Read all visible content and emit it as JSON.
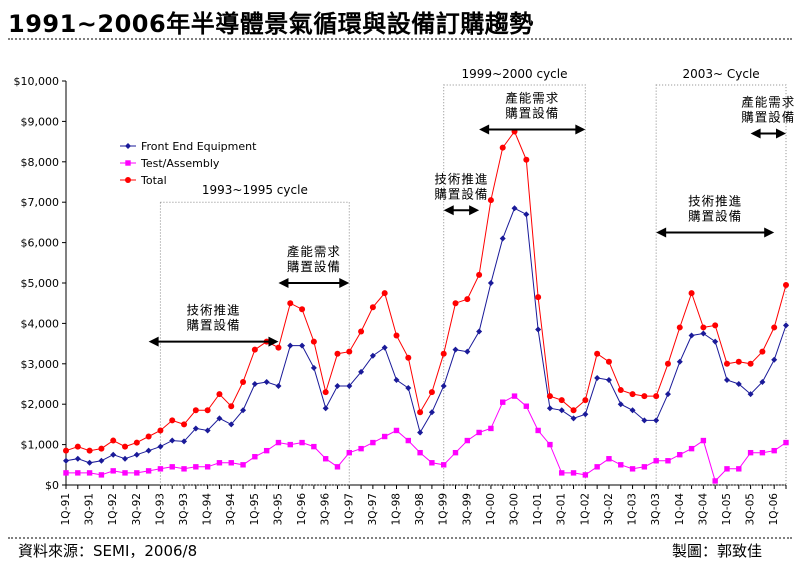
{
  "title": "1991~2006年半導體景氣循環與設備訂購趨勢",
  "footer": {
    "source": "資料來源：SEMI，2006/8",
    "author": "製圖：郭致佳"
  },
  "colors": {
    "front_end": "#1a1a99",
    "test_assembly": "#ff00ff",
    "total": "#ff0000",
    "annotation": "#000000"
  },
  "chart_data": {
    "type": "line",
    "ylim": [
      0,
      10000
    ],
    "ytick_labels": [
      "$0",
      "$1,000",
      "$2,000",
      "$3,000",
      "$4,000",
      "$5,000",
      "$6,000",
      "$7,000",
      "$8,000",
      "$9,000",
      "$10,000"
    ],
    "categories": [
      "1Q-91",
      "2Q-91",
      "3Q-91",
      "4Q-91",
      "1Q-92",
      "2Q-92",
      "3Q-92",
      "4Q-92",
      "1Q-93",
      "2Q-93",
      "3Q-93",
      "4Q-93",
      "1Q-94",
      "2Q-94",
      "3Q-94",
      "4Q-94",
      "1Q-95",
      "2Q-95",
      "3Q-95",
      "4Q-95",
      "1Q-96",
      "2Q-96",
      "3Q-96",
      "4Q-96",
      "1Q-97",
      "2Q-97",
      "3Q-97",
      "4Q-97",
      "1Q-98",
      "2Q-98",
      "3Q-98",
      "4Q-98",
      "1Q-99",
      "2Q-99",
      "3Q-99",
      "4Q-99",
      "1Q-00",
      "2Q-00",
      "3Q-00",
      "4Q-00",
      "1Q-01",
      "2Q-01",
      "3Q-01",
      "4Q-01",
      "1Q-02",
      "2Q-02",
      "3Q-02",
      "4Q-02",
      "1Q-03",
      "2Q-03",
      "3Q-03",
      "4Q-03",
      "1Q-04",
      "2Q-04",
      "3Q-04",
      "4Q-04",
      "1Q-05",
      "2Q-05",
      "3Q-05",
      "4Q-05",
      "1Q-06",
      "2Q-06"
    ],
    "series": [
      {
        "name": "Front End Equipment",
        "marker": "diamond",
        "values": [
          600,
          650,
          550,
          600,
          750,
          650,
          750,
          850,
          950,
          1100,
          1080,
          1400,
          1350,
          1650,
          1500,
          1850,
          2500,
          2550,
          2450,
          3450,
          3450,
          2900,
          1900,
          2450,
          2450,
          2800,
          3200,
          3400,
          2600,
          2400,
          1300,
          1800,
          2450,
          3350,
          3300,
          3800,
          5000,
          6100,
          6850,
          6700,
          3850,
          1900,
          1850,
          1650,
          1750,
          2650,
          2600,
          2000,
          1850,
          1600,
          1600,
          2250,
          3050,
          3700,
          3750,
          3550,
          2600,
          2500,
          2250,
          2550,
          3100,
          3950
        ]
      },
      {
        "name": "Test/Assembly",
        "marker": "square",
        "values": [
          300,
          300,
          300,
          250,
          350,
          300,
          300,
          350,
          400,
          450,
          400,
          450,
          450,
          550,
          550,
          500,
          700,
          850,
          1050,
          1000,
          1050,
          950,
          650,
          450,
          800,
          900,
          1050,
          1200,
          1350,
          1100,
          800,
          550,
          500,
          800,
          1100,
          1300,
          1400,
          2050,
          2200,
          1950,
          1350,
          1000,
          300,
          300,
          250,
          450,
          650,
          500,
          400,
          450,
          600,
          600,
          750,
          900,
          1100,
          100,
          400,
          400,
          800,
          800,
          850,
          1050
        ]
      },
      {
        "name": "Total",
        "marker": "circle",
        "values": [
          850,
          950,
          850,
          900,
          1100,
          950,
          1050,
          1200,
          1350,
          1600,
          1500,
          1850,
          1850,
          2250,
          1950,
          2550,
          3350,
          3550,
          3400,
          4500,
          4350,
          3550,
          2300,
          3250,
          3300,
          3800,
          4400,
          4750,
          3700,
          3150,
          1800,
          2300,
          3250,
          4500,
          4600,
          5200,
          7050,
          8350,
          8750,
          8050,
          4650,
          2200,
          2100,
          1850,
          2100,
          3250,
          3050,
          2350,
          2250,
          2200,
          2200,
          3000,
          3900,
          4750,
          3900,
          3950,
          3000,
          3050,
          3000,
          3300,
          3900,
          4950
        ]
      }
    ],
    "cycles": [
      {
        "label": "1993~1995 cycle",
        "start": "1Q-93",
        "end": "1Q-97"
      },
      {
        "label": "1999~2000 cycle",
        "start": "1Q-99",
        "end": "1Q-02"
      },
      {
        "label": "2003~  Cycle",
        "start": "3Q-03",
        "end": "2Q-06"
      }
    ],
    "annotations": [
      {
        "line1": "技術推進",
        "line2": "購置設備",
        "from": "4Q-92",
        "to": "3Q-95",
        "y": 3550
      },
      {
        "line1": "產能需求",
        "line2": "購置設備",
        "from": "3Q-95",
        "to": "1Q-97",
        "y": 5000
      },
      {
        "line1": "技術推進",
        "line2": "購置設備",
        "from": "1Q-99",
        "to": "4Q-99",
        "y": 6800
      },
      {
        "line1": "產能需求",
        "line2": "購置設備",
        "from": "4Q-99",
        "to": "1Q-02",
        "y": 8800
      },
      {
        "line1": "技術推進",
        "line2": "購置設備",
        "from": "3Q-03",
        "to": "1Q-06",
        "y": 6250
      },
      {
        "line1": "產能需求",
        "line2": "購置設備",
        "from": "3Q-05",
        "to": "2Q-06",
        "y": 8700
      }
    ],
    "legend_position": "top-left"
  }
}
